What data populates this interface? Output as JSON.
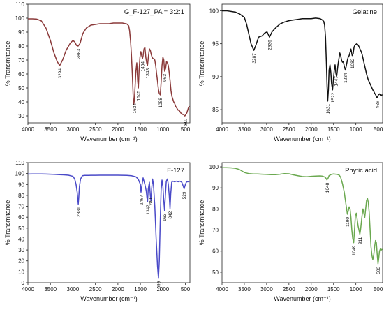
{
  "chart_data": [
    {
      "type": "line",
      "title": "G_F-127_PA = 3:2:1",
      "xlabel": "Wavenumber (cm⁻¹)",
      "ylabel": "% Transmitance",
      "xlim": [
        4000,
        400
      ],
      "ylim": [
        25,
        110
      ],
      "xticks": [
        4000,
        3500,
        3000,
        2500,
        2000,
        1500,
        1000,
        500
      ],
      "yticks": [
        30,
        40,
        50,
        60,
        70,
        80,
        90,
        100,
        110
      ],
      "color": "#8b3a3a",
      "series": [
        {
          "x": [
            4000,
            3900,
            3800,
            3700,
            3600,
            3500,
            3420,
            3350,
            3294,
            3230,
            3150,
            3060,
            3000,
            2960,
            2920,
            2883,
            2840,
            2780,
            2700,
            2600,
            2500,
            2400,
            2300,
            2200,
            2100,
            2000,
            1900,
            1800,
            1760,
            1740,
            1720,
            1700,
            1680,
            1660,
            1650,
            1640,
            1634,
            1620,
            1600,
            1580,
            1560,
            1545,
            1530,
            1510,
            1490,
            1470,
            1454,
            1440,
            1420,
            1400,
            1380,
            1360,
            1343,
            1320,
            1300,
            1280,
            1260,
            1240,
            1220,
            1200,
            1180,
            1160,
            1140,
            1120,
            1100,
            1080,
            1058,
            1040,
            1020,
            1000,
            980,
            963,
            940,
            920,
            900,
            880,
            860,
            840,
            820,
            800,
            780,
            760,
            740,
            720,
            700,
            680,
            660,
            640,
            620,
            600,
            580,
            560,
            540,
            520,
            510,
            490,
            470,
            450,
            430,
            410
          ],
          "y": [
            99.5,
            99.5,
            99.3,
            98,
            93,
            84,
            75,
            69,
            66,
            70,
            77,
            82,
            84,
            83,
            80.5,
            80,
            82,
            89,
            93,
            95,
            95.5,
            96,
            96,
            96,
            96.5,
            96.5,
            96.5,
            95.8,
            94.5,
            91,
            84,
            74,
            60,
            44,
            38,
            40,
            41,
            50,
            62,
            68,
            55,
            50,
            62,
            72,
            76,
            73,
            71,
            73,
            78,
            79,
            72,
            68,
            66,
            73,
            78,
            77,
            74,
            72,
            71,
            71,
            70,
            66,
            60,
            55,
            49,
            46,
            45,
            54,
            66,
            72,
            70,
            62,
            64,
            69,
            68,
            66,
            61,
            55,
            48,
            44,
            42,
            40,
            39,
            37,
            36,
            35,
            34,
            34,
            33,
            32,
            31.5,
            31,
            31,
            30,
            30,
            31,
            32,
            34,
            36,
            37
          ]
        }
      ],
      "annotations": [
        "3294",
        "2883",
        "1634",
        "1545",
        "1454",
        "1343",
        "1058",
        "963",
        "510"
      ],
      "annotation_points": [
        [
          3294,
          66
        ],
        [
          2883,
          80
        ],
        [
          1634,
          41
        ],
        [
          1545,
          50
        ],
        [
          1454,
          71
        ],
        [
          1343,
          66
        ],
        [
          1058,
          45
        ],
        [
          963,
          62
        ],
        [
          510,
          30
        ]
      ]
    },
    {
      "type": "line",
      "title": "Gelatine",
      "xlabel": "Wavenumber (cm⁻¹)",
      "ylabel": "% Transmitance",
      "xlim": [
        4000,
        400
      ],
      "ylim": [
        83,
        101
      ],
      "xticks": [
        4000,
        3500,
        3000,
        2500,
        2000,
        1500,
        1000,
        500
      ],
      "yticks": [
        85,
        90,
        95,
        100
      ],
      "color": "#111111",
      "series": [
        {
          "x": [
            4000,
            3900,
            3800,
            3700,
            3600,
            3500,
            3450,
            3400,
            3350,
            3287,
            3240,
            3180,
            3100,
            3050,
            2990,
            2936,
            2880,
            2800,
            2700,
            2600,
            2500,
            2400,
            2300,
            2200,
            2100,
            2000,
            1900,
            1800,
            1750,
            1720,
            1700,
            1680,
            1660,
            1645,
            1631,
            1615,
            1600,
            1580,
            1560,
            1545,
            1522,
            1500,
            1480,
            1465,
            1447,
            1430,
            1400,
            1380,
            1360,
            1340,
            1320,
            1300,
            1280,
            1260,
            1234,
            1210,
            1190,
            1170,
            1150,
            1130,
            1110,
            1082,
            1060,
            1040,
            1020,
            1000,
            980,
            960,
            940,
            920,
            900,
            880,
            860,
            840,
            820,
            800,
            780,
            760,
            740,
            720,
            700,
            680,
            660,
            640,
            620,
            600,
            580,
            560,
            545,
            529,
            510,
            490,
            470,
            450,
            430,
            410
          ],
          "y": [
            100,
            100,
            99.9,
            99.8,
            99.5,
            99,
            98,
            96.5,
            95,
            94,
            94.8,
            96,
            96.2,
            96.6,
            96.8,
            96,
            96.8,
            97.4,
            98,
            98.3,
            98.5,
            98.6,
            98.7,
            98.8,
            98.8,
            98.8,
            98.9,
            98.8,
            98.6,
            98.4,
            97.8,
            96,
            92,
            88.5,
            86.3,
            88,
            91,
            91.8,
            90.6,
            89,
            88,
            89.8,
            91.2,
            91.8,
            90.5,
            90,
            91.8,
            92.7,
            93.6,
            93.2,
            92.5,
            92.2,
            92.3,
            91.6,
            91,
            91.8,
            92.5,
            93,
            93.2,
            93.7,
            94.2,
            93.2,
            93.5,
            94.5,
            94.8,
            94.9,
            95,
            94.9,
            94.7,
            94.4,
            94.1,
            93.8,
            93.4,
            92.8,
            92.2,
            91.6,
            91,
            90.4,
            89.9,
            89.5,
            89.2,
            88.9,
            88.6,
            88.3,
            88,
            87.8,
            87.5,
            87.3,
            87.1,
            86.8,
            87,
            87.3,
            87.4,
            87.2,
            87.1,
            87.3
          ]
        }
      ],
      "annotations": [
        "3287",
        "2936",
        "1631",
        "1522",
        "1447",
        "1234",
        "1082",
        "529"
      ],
      "annotation_points": [
        [
          3287,
          94
        ],
        [
          2936,
          96
        ],
        [
          1631,
          86.3
        ],
        [
          1522,
          88
        ],
        [
          1447,
          90.5
        ],
        [
          1234,
          91
        ],
        [
          1082,
          93.2
        ],
        [
          529,
          86.8
        ]
      ]
    },
    {
      "type": "line",
      "title": "F-127",
      "xlabel": "Wavenumber (cm⁻¹)",
      "ylabel": "% Transmitance",
      "xlim": [
        4000,
        400
      ],
      "ylim": [
        0,
        110
      ],
      "xticks": [
        4000,
        3500,
        3000,
        2500,
        2000,
        1500,
        1000,
        500
      ],
      "yticks": [
        0,
        10,
        20,
        30,
        40,
        50,
        60,
        70,
        80,
        90,
        100,
        110
      ],
      "color": "#4a4ac8",
      "series": [
        {
          "x": [
            4000,
            3900,
            3800,
            3700,
            3600,
            3500,
            3400,
            3300,
            3200,
            3100,
            3000,
            2960,
            2930,
            2905,
            2890,
            2881,
            2870,
            2855,
            2830,
            2790,
            2740,
            2680,
            2600,
            2500,
            2400,
            2300,
            2200,
            2100,
            2000,
            1900,
            1800,
            1700,
            1600,
            1550,
            1500,
            1487,
            1470,
            1440,
            1400,
            1370,
            1355,
            1342,
            1325,
            1300,
            1280,
            1265,
            1250,
            1230,
            1210,
            1180,
            1150,
            1120,
            1099,
            1080,
            1060,
            1040,
            1020,
            1000,
            980,
            963,
            945,
            925,
            900,
            880,
            860,
            842,
            825,
            805,
            780,
            740,
            700,
            660,
            620,
            580,
            545,
            529,
            515,
            500,
            480,
            460,
            440,
            420,
            400
          ],
          "y": [
            99.5,
            99.6,
            99.6,
            99.6,
            99.5,
            99.4,
            99.2,
            99,
            98.8,
            98.5,
            97.5,
            95,
            90,
            83,
            76,
            72,
            78,
            88,
            95,
            98,
            98.3,
            98.3,
            98.4,
            98.4,
            98.5,
            98.5,
            98.5,
            98.5,
            98.5,
            98.4,
            98.3,
            98,
            97,
            95,
            90,
            83,
            88,
            96,
            90,
            84,
            78,
            74,
            86,
            92,
            80,
            75,
            86,
            95,
            90,
            70,
            40,
            15,
            4,
            20,
            55,
            85,
            94,
            88,
            75,
            66,
            80,
            93,
            95,
            90,
            80,
            68,
            82,
            92,
            93,
            92.5,
            93,
            92.5,
            93,
            92,
            88,
            86,
            88,
            90,
            92,
            92.5,
            92.5,
            92.8,
            93
          ]
        }
      ],
      "annotations": [
        "2881",
        "1487",
        "1342",
        "1280",
        "1099",
        "963",
        "842",
        "529"
      ],
      "annotation_points": [
        [
          2881,
          72
        ],
        [
          1487,
          83
        ],
        [
          1342,
          74
        ],
        [
          1280,
          80
        ],
        [
          1099,
          4
        ],
        [
          963,
          66
        ],
        [
          842,
          68
        ],
        [
          529,
          86
        ]
      ]
    },
    {
      "type": "line",
      "title": "Phytic acid",
      "xlabel": "Wavenumber (cm⁻¹)",
      "ylabel": "% Transmitance",
      "xlim": [
        4000,
        400
      ],
      "ylim": [
        45,
        102
      ],
      "xticks": [
        4000,
        3500,
        3000,
        2500,
        2000,
        1500,
        1000,
        500
      ],
      "yticks": [
        50,
        60,
        70,
        80,
        90,
        100
      ],
      "color": "#6aa84f",
      "series": [
        {
          "x": [
            4000,
            3900,
            3800,
            3700,
            3650,
            3600,
            3550,
            3500,
            3400,
            3300,
            3200,
            3100,
            3000,
            2900,
            2800,
            2700,
            2600,
            2500,
            2400,
            2300,
            2200,
            2100,
            2000,
            1900,
            1800,
            1750,
            1700,
            1670,
            1648,
            1625,
            1600,
            1550,
            1500,
            1450,
            1400,
            1370,
            1340,
            1300,
            1260,
            1240,
            1220,
            1200,
            1190,
            1170,
            1150,
            1130,
            1110,
            1090,
            1070,
            1049,
            1030,
            1010,
            990,
            970,
            950,
            930,
            911,
            895,
            880,
            860,
            840,
            820,
            800,
            780,
            760,
            740,
            720,
            700,
            680,
            660,
            640,
            620,
            600,
            580,
            560,
            540,
            520,
            503,
            490,
            470,
            450,
            430,
            410
          ],
          "y": [
            99.6,
            99.6,
            99.5,
            99.3,
            99,
            98.6,
            98,
            97.3,
            96.8,
            96.6,
            96.6,
            96.5,
            96.4,
            96.3,
            96.3,
            96.5,
            96.8,
            96.7,
            96.2,
            95.8,
            95.4,
            95.3,
            95.5,
            95.6,
            95.7,
            95.6,
            95.2,
            94.6,
            93.8,
            94.5,
            95.8,
            96.4,
            96.6,
            96.5,
            96.3,
            96,
            95,
            92,
            88,
            85,
            82,
            79,
            77.5,
            79,
            81,
            80,
            76,
            70,
            66,
            64,
            70,
            77,
            78,
            75,
            72,
            70,
            68,
            70,
            73,
            77,
            80,
            78,
            76,
            80,
            84,
            85,
            83,
            78,
            70,
            62,
            58,
            56,
            58,
            62,
            65,
            64,
            58,
            54,
            56,
            60,
            61,
            60.5,
            61
          ]
        }
      ],
      "annotations": [
        "1648",
        "1190",
        "1049",
        "911",
        "503"
      ],
      "annotation_points": [
        [
          1648,
          93.8
        ],
        [
          1190,
          77.5
        ],
        [
          1049,
          64
        ],
        [
          911,
          68
        ],
        [
          503,
          54
        ]
      ]
    }
  ]
}
